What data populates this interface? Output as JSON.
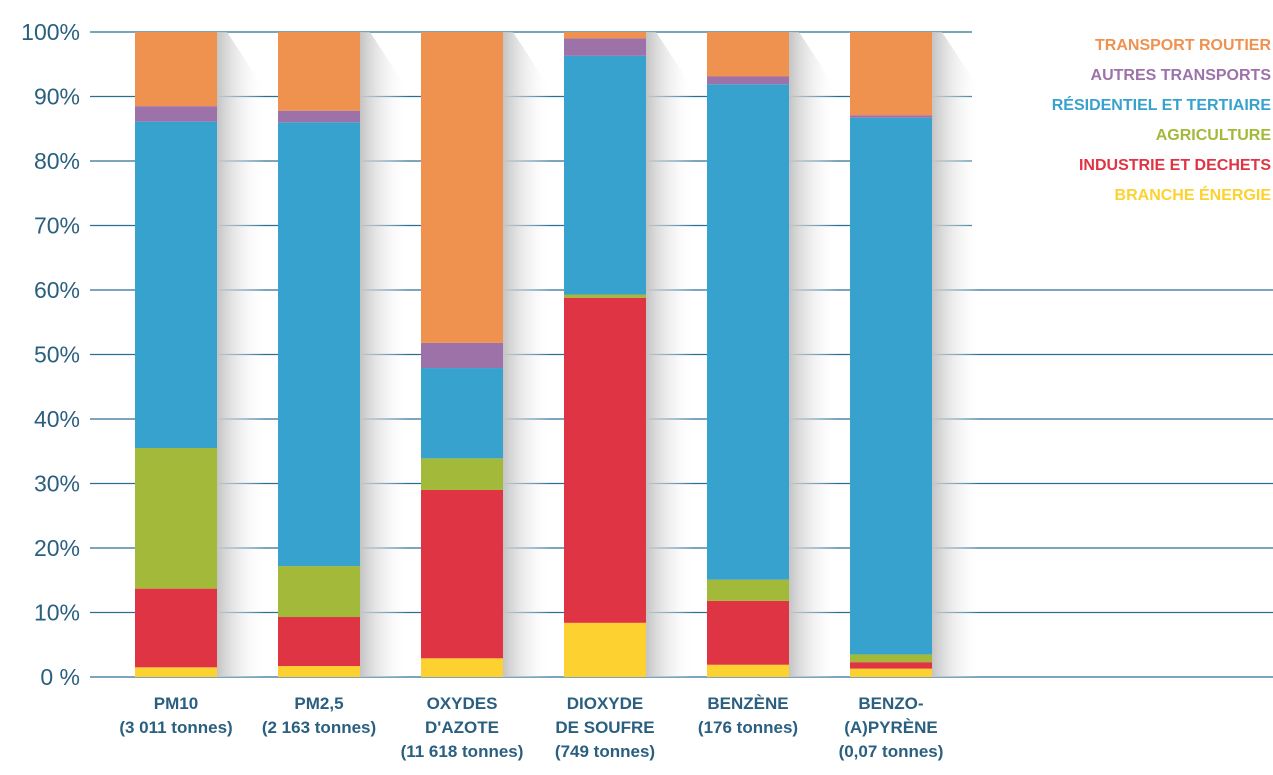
{
  "chart_data": {
    "type": "bar",
    "stacked": true,
    "percent": true,
    "ylim": [
      0,
      100
    ],
    "yticks": [
      "0 %",
      "10%",
      "20%",
      "30%",
      "40%",
      "50%",
      "60%",
      "70%",
      "80%",
      "90%",
      "100%"
    ],
    "grid": true,
    "legend_position": "top-right",
    "categories": [
      [
        "PM10",
        "(3 011 tonnes)"
      ],
      [
        "PM2,5",
        "(2 163 tonnes)"
      ],
      [
        "OXYDES",
        "D'AZOTE",
        "(11 618 tonnes)"
      ],
      [
        "DIOXYDE",
        "DE SOUFRE",
        "(749 tonnes)"
      ],
      [
        "BENZÈNE",
        "(176 tonnes)"
      ],
      [
        "BENZO-",
        "(A)PYRÈNE",
        "(0,07 tonnes)"
      ]
    ],
    "series": [
      {
        "name": "BRANCHE ÉNERGIE",
        "color": "#fdd12f",
        "values": [
          1.5,
          1.7,
          2.9,
          8.4,
          1.9,
          1.3
        ]
      },
      {
        "name": "INDUSTRIE ET DECHETS",
        "color": "#de3444",
        "values": [
          12.2,
          7.6,
          26.1,
          50.4,
          9.9,
          1.0
        ]
      },
      {
        "name": "AGRICULTURE",
        "color": "#a2b93a",
        "values": [
          21.8,
          7.9,
          4.9,
          0.5,
          3.3,
          1.2
        ]
      },
      {
        "name": "RÉSIDENTIEL ET TERTIAIRE",
        "color": "#37a2cd",
        "values": [
          50.6,
          68.8,
          14.0,
          37.0,
          76.8,
          83.2
        ]
      },
      {
        "name": "AUTRES TRANSPORTS",
        "color": "#9c72a9",
        "values": [
          2.4,
          1.8,
          3.9,
          2.7,
          1.2,
          0.4
        ]
      },
      {
        "name": "TRANSPORT ROUTIER",
        "color": "#ef914f",
        "values": [
          11.5,
          12.2,
          48.2,
          1.0,
          6.9,
          12.9
        ]
      }
    ],
    "legend_order": [
      "TRANSPORT ROUTIER",
      "AUTRES TRANSPORTS",
      "RÉSIDENTIEL ET TERTIAIRE",
      "AGRICULTURE",
      "INDUSTRIE ET DECHETS",
      "BRANCHE ÉNERGIE"
    ],
    "colors": {
      "grid": "#2a6f92",
      "axis_text": "#2a5f80",
      "shadow": "#c4c4c4"
    }
  }
}
